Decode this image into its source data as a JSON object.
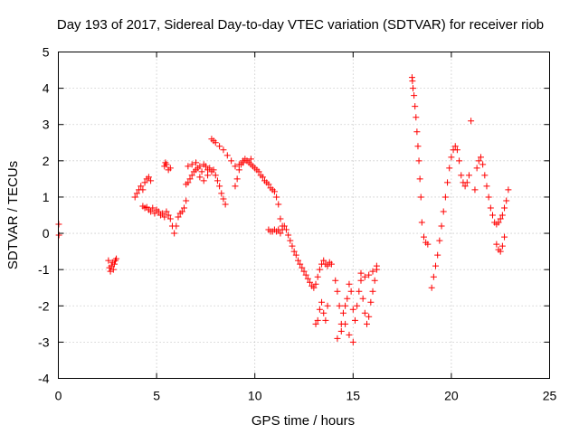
{
  "chart_data": {
    "type": "scatter",
    "title": "Day 193 of 2017, Sidereal Day-to-day VTEC variation (SDTVAR) for receiver riob",
    "xlabel": "GPS time / hours",
    "ylabel": "SDTVAR / TECUs",
    "xlim": [
      0,
      25
    ],
    "ylim": [
      -4,
      5
    ],
    "xticks": [
      "0",
      "5",
      "10",
      "15",
      "20",
      "25"
    ],
    "yticks": [
      "-4",
      "-3",
      "-2",
      "-1",
      "0",
      "1",
      "2",
      "3",
      "4",
      "5"
    ],
    "grid": true,
    "marker": "plus",
    "color": "#ff0000",
    "series": [
      {
        "name": "SDTVAR",
        "x": [
          0.02,
          0.03,
          2.55,
          2.6,
          2.65,
          2.7,
          2.75,
          2.8,
          2.85,
          2.9,
          2.95,
          3.9,
          4.0,
          4.1,
          4.2,
          4.3,
          4.4,
          4.5,
          4.6,
          4.7,
          4.3,
          4.4,
          4.5,
          4.6,
          4.7,
          4.8,
          4.9,
          5.0,
          5.1,
          5.2,
          5.3,
          5.4,
          5.5,
          5.6,
          5.7,
          5.8,
          5.9,
          6.0,
          6.1,
          6.2,
          6.3,
          6.4,
          6.5,
          5.4,
          5.45,
          5.5,
          5.6,
          5.7,
          6.5,
          6.6,
          6.7,
          6.8,
          6.9,
          7.0,
          7.1,
          7.2,
          7.3,
          7.4,
          7.5,
          7.6,
          7.7,
          7.8,
          7.9,
          8.0,
          8.1,
          8.2,
          8.3,
          8.4,
          8.5,
          6.6,
          6.8,
          7.0,
          7.2,
          7.4,
          7.6,
          7.8,
          7.9,
          8.0,
          8.2,
          8.4,
          8.6,
          8.8,
          9.0,
          9.2,
          9.4,
          9.6,
          9.8,
          9.0,
          9.1,
          9.2,
          9.3,
          9.4,
          9.5,
          9.6,
          9.7,
          9.8,
          9.9,
          10.0,
          10.1,
          10.2,
          10.3,
          10.4,
          10.5,
          10.6,
          10.7,
          10.8,
          10.9,
          11.0,
          11.1,
          11.2,
          11.3,
          11.4,
          10.7,
          10.8,
          10.9,
          11.0,
          11.1,
          11.2,
          11.3,
          11.4,
          11.5,
          11.6,
          11.7,
          11.8,
          11.9,
          12.0,
          12.1,
          12.2,
          12.3,
          12.4,
          12.5,
          12.6,
          12.7,
          12.8,
          12.9,
          13.0,
          13.1,
          13.2,
          13.3,
          13.4,
          13.5,
          13.6,
          13.7,
          13.8,
          13.9,
          13.1,
          13.2,
          13.3,
          13.4,
          13.5,
          13.6,
          13.7,
          14.1,
          14.2,
          14.3,
          14.4,
          14.5,
          14.6,
          14.7,
          14.8,
          14.9,
          15.0,
          15.1,
          15.2,
          15.3,
          14.2,
          14.4,
          14.6,
          14.8,
          15.0,
          15.4,
          15.5,
          15.6,
          15.7,
          15.8,
          15.9,
          16.0,
          16.1,
          16.2,
          15.4,
          15.6,
          15.8,
          16.0,
          16.2,
          18.0,
          18.02,
          18.05,
          18.1,
          18.15,
          18.2,
          18.25,
          18.3,
          18.35,
          18.4,
          18.45,
          18.5,
          18.6,
          18.7,
          18.8,
          19.0,
          19.1,
          19.2,
          19.3,
          19.4,
          19.5,
          19.6,
          19.7,
          19.8,
          19.9,
          20.0,
          20.1,
          20.2,
          20.3,
          20.4,
          20.5,
          20.6,
          20.7,
          20.8,
          20.9,
          21.2,
          21.3,
          21.4,
          21.5,
          21.6,
          21.7,
          21.8,
          21.9,
          22.0,
          22.1,
          22.2,
          22.3,
          22.4,
          22.5,
          22.6,
          22.7,
          22.8,
          22.9,
          22.3,
          22.4,
          22.5,
          22.6,
          22.7,
          21.0
        ],
        "y": [
          0.25,
          -0.05,
          -0.75,
          -0.95,
          -1.05,
          -0.9,
          -0.8,
          -1.0,
          -0.85,
          -0.75,
          -0.7,
          1.0,
          1.1,
          1.2,
          1.3,
          1.2,
          1.4,
          1.5,
          1.55,
          1.45,
          0.75,
          0.7,
          0.72,
          0.65,
          0.6,
          0.7,
          0.55,
          0.65,
          0.6,
          0.5,
          0.55,
          0.45,
          0.6,
          0.5,
          0.4,
          0.2,
          0.0,
          0.2,
          0.45,
          0.55,
          0.6,
          0.7,
          0.9,
          1.85,
          1.95,
          1.9,
          1.75,
          1.8,
          1.35,
          1.4,
          1.5,
          1.6,
          1.7,
          1.75,
          1.8,
          1.85,
          1.7,
          1.9,
          1.85,
          1.75,
          1.8,
          1.7,
          1.75,
          1.6,
          1.45,
          1.3,
          1.1,
          0.95,
          0.8,
          1.85,
          1.9,
          1.95,
          1.55,
          1.45,
          1.6,
          2.6,
          2.55,
          2.5,
          2.4,
          2.3,
          2.15,
          2.0,
          1.85,
          1.9,
          1.95,
          2.0,
          2.05,
          1.3,
          1.5,
          1.75,
          1.9,
          2.0,
          2.05,
          2.0,
          1.95,
          1.9,
          1.85,
          1.8,
          1.75,
          1.7,
          1.6,
          1.55,
          1.45,
          1.4,
          1.35,
          1.25,
          1.2,
          1.15,
          1.0,
          0.8,
          0.4,
          0.2,
          0.1,
          0.05,
          0.05,
          0.1,
          0.05,
          0.1,
          0.0,
          0.1,
          0.2,
          0.1,
          -0.05,
          -0.2,
          -0.35,
          -0.5,
          -0.6,
          -0.75,
          -0.85,
          -0.95,
          -1.05,
          -1.15,
          -1.25,
          -1.35,
          -1.45,
          -1.5,
          -1.4,
          -1.2,
          -1.0,
          -0.85,
          -0.75,
          -0.85,
          -0.9,
          -0.8,
          -0.85,
          -2.5,
          -2.4,
          -2.1,
          -1.9,
          -2.2,
          -2.4,
          -2.0,
          -1.3,
          -1.6,
          -2.0,
          -2.5,
          -2.2,
          -2.0,
          -1.8,
          -1.4,
          -1.6,
          -2.1,
          -2.4,
          -2.0,
          -1.6,
          -2.9,
          -2.7,
          -2.5,
          -2.8,
          -3.0,
          -1.3,
          -1.8,
          -2.2,
          -2.5,
          -2.3,
          -1.9,
          -1.6,
          -1.3,
          -1.0,
          -1.1,
          -1.2,
          -1.15,
          -1.05,
          -0.9,
          4.3,
          4.2,
          4.0,
          3.8,
          3.5,
          3.2,
          2.8,
          2.4,
          2.0,
          1.5,
          1.0,
          0.3,
          -0.1,
          -0.25,
          -0.3,
          -1.5,
          -1.2,
          -0.9,
          -0.6,
          -0.2,
          0.2,
          0.6,
          1.0,
          1.4,
          1.8,
          2.1,
          2.3,
          2.4,
          2.3,
          2.0,
          1.6,
          1.4,
          1.3,
          1.4,
          1.6,
          1.2,
          1.8,
          2.0,
          2.1,
          1.9,
          1.6,
          1.3,
          1.0,
          0.7,
          0.5,
          0.3,
          0.25,
          0.3,
          0.4,
          0.5,
          0.7,
          0.9,
          1.2,
          -0.3,
          -0.45,
          -0.5,
          -0.35,
          -0.1,
          3.1
        ]
      }
    ]
  }
}
